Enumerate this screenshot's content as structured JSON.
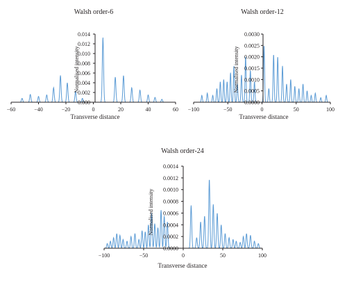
{
  "colors": {
    "curve": "#5b9bd5",
    "axis": "#231f20"
  },
  "chart_data": [
    {
      "type": "line",
      "title": "Walsh order-6",
      "xlabel": "Transverse distance",
      "ylabel": "Normalised intensity",
      "xlim": [
        -60,
        60
      ],
      "ylim": [
        0,
        0.014
      ],
      "x_ticks": [
        "−60",
        "−40",
        "−20",
        "0",
        "20",
        "40",
        "60"
      ],
      "y_ticks": [
        "0.000",
        "0.002",
        "0.004",
        "0.006",
        "0.008",
        "0.010",
        "0.012",
        "0.014"
      ],
      "peaks": [
        {
          "x": -52,
          "y": 0.0008
        },
        {
          "x": -46,
          "y": 0.0016
        },
        {
          "x": -40,
          "y": 0.0012
        },
        {
          "x": -34,
          "y": 0.0015
        },
        {
          "x": -29,
          "y": 0.003
        },
        {
          "x": -24,
          "y": 0.0055
        },
        {
          "x": -19,
          "y": 0.004
        },
        {
          "x": -13,
          "y": 0.0022
        },
        {
          "x": -8,
          "y": 0.0008
        },
        {
          "x": 7,
          "y": 0.0133
        },
        {
          "x": 16,
          "y": 0.0052
        },
        {
          "x": 22,
          "y": 0.0055
        },
        {
          "x": 28,
          "y": 0.003
        },
        {
          "x": 34,
          "y": 0.0025
        },
        {
          "x": 40,
          "y": 0.0015
        },
        {
          "x": 45,
          "y": 0.001
        },
        {
          "x": 50,
          "y": 0.0006
        }
      ]
    },
    {
      "type": "line",
      "title": "Walsh order-12",
      "xlabel": "Transverse distance",
      "ylabel": "Normalised intensity",
      "xlim": [
        -100,
        100
      ],
      "ylim": [
        0,
        0.003
      ],
      "x_ticks": [
        "−100",
        "−50",
        "0",
        "50",
        "100"
      ],
      "y_ticks": [
        "0.0000",
        "0.0005",
        "0.0010",
        "0.0015",
        "0.0020",
        "0.0025",
        "0.0030"
      ],
      "peaks": [
        {
          "x": -88,
          "y": 0.0003
        },
        {
          "x": -80,
          "y": 0.0004
        },
        {
          "x": -72,
          "y": 0.0003
        },
        {
          "x": -66,
          "y": 0.0006
        },
        {
          "x": -61,
          "y": 0.0009
        },
        {
          "x": -56,
          "y": 0.001
        },
        {
          "x": -51,
          "y": 0.0009
        },
        {
          "x": -46,
          "y": 0.0013
        },
        {
          "x": -41,
          "y": 0.0016
        },
        {
          "x": -36,
          "y": 0.0008
        },
        {
          "x": -30,
          "y": 0.0012
        },
        {
          "x": -24,
          "y": 0.002
        },
        {
          "x": -17,
          "y": 0.0014
        },
        {
          "x": -11,
          "y": 0.0009
        },
        {
          "x": 3,
          "y": 0.0025
        },
        {
          "x": 10,
          "y": 0.0006
        },
        {
          "x": 17,
          "y": 0.0021
        },
        {
          "x": 23,
          "y": 0.002
        },
        {
          "x": 30,
          "y": 0.0016
        },
        {
          "x": 36,
          "y": 0.0008
        },
        {
          "x": 42,
          "y": 0.001
        },
        {
          "x": 48,
          "y": 0.0007
        },
        {
          "x": 54,
          "y": 0.0006
        },
        {
          "x": 60,
          "y": 0.0008
        },
        {
          "x": 66,
          "y": 0.0005
        },
        {
          "x": 72,
          "y": 0.0003
        },
        {
          "x": 78,
          "y": 0.0004
        },
        {
          "x": 86,
          "y": 0.0002
        },
        {
          "x": 94,
          "y": 0.0003
        }
      ]
    },
    {
      "type": "line",
      "title": "Walsh order-24",
      "xlabel": "Transverse distance",
      "ylabel": "Normalised intensity",
      "xlim": [
        -100,
        100
      ],
      "ylim": [
        0,
        0.0014
      ],
      "x_ticks": [
        "−100",
        "−50",
        "0",
        "50",
        "100"
      ],
      "y_ticks": [
        "0.0000",
        "0.0002",
        "0.0004",
        "0.0006",
        "0.0008",
        "0.0010",
        "0.0012",
        "0.0014"
      ],
      "peaks": [
        {
          "x": -96,
          "y": 8e-05
        },
        {
          "x": -92,
          "y": 0.00012
        },
        {
          "x": -88,
          "y": 0.00018
        },
        {
          "x": -84,
          "y": 0.00025
        },
        {
          "x": -80,
          "y": 0.00022
        },
        {
          "x": -76,
          "y": 0.00015
        },
        {
          "x": -71,
          "y": 0.00012
        },
        {
          "x": -66,
          "y": 0.0002
        },
        {
          "x": -61,
          "y": 0.00025
        },
        {
          "x": -56,
          "y": 0.00015
        },
        {
          "x": -52,
          "y": 0.0003
        },
        {
          "x": -48,
          "y": 0.00028
        },
        {
          "x": -44,
          "y": 0.0004
        },
        {
          "x": -40,
          "y": 0.0006
        },
        {
          "x": -36,
          "y": 0.00042
        },
        {
          "x": -32,
          "y": 0.00035
        },
        {
          "x": -28,
          "y": 0.00065
        },
        {
          "x": -24,
          "y": 0.00055
        },
        {
          "x": -20,
          "y": 0.00045
        },
        {
          "x": 10,
          "y": 0.00073
        },
        {
          "x": 17,
          "y": 0.00018
        },
        {
          "x": 22,
          "y": 0.00045
        },
        {
          "x": 27,
          "y": 0.00055
        },
        {
          "x": 33,
          "y": 0.00118
        },
        {
          "x": 38,
          "y": 0.00075
        },
        {
          "x": 43,
          "y": 0.0006
        },
        {
          "x": 48,
          "y": 0.0004
        },
        {
          "x": 53,
          "y": 0.00025
        },
        {
          "x": 58,
          "y": 0.00018
        },
        {
          "x": 63,
          "y": 0.00015
        },
        {
          "x": 67,
          "y": 0.00012
        },
        {
          "x": 72,
          "y": 0.0001
        },
        {
          "x": 76,
          "y": 0.0002
        },
        {
          "x": 80,
          "y": 0.00025
        },
        {
          "x": 85,
          "y": 0.00022
        },
        {
          "x": 90,
          "y": 0.00012
        },
        {
          "x": 95,
          "y": 8e-05
        }
      ]
    }
  ]
}
